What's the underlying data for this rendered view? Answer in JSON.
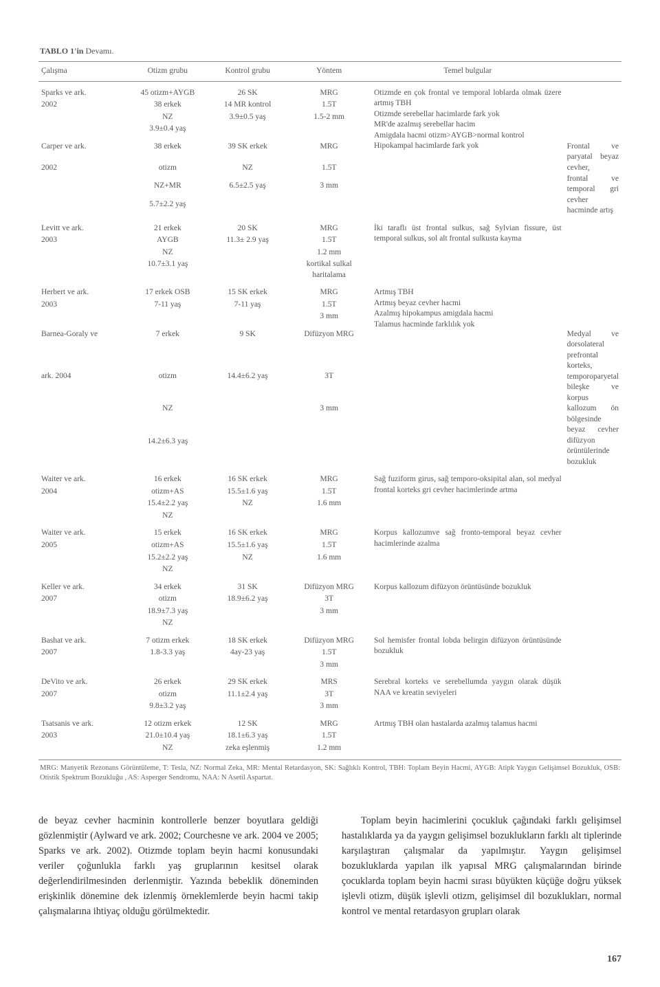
{
  "table": {
    "caption_bold": "TABLO 1'in",
    "caption_rest": " Devamı.",
    "headers": [
      "Çalışma",
      "Otizm grubu",
      "Kontrol grubu",
      "Yöntem",
      "Temel bulgular"
    ],
    "rows": [
      {
        "study": [
          "Sparks ve ark.",
          "2002"
        ],
        "autism": [
          "45 otizm+AYGB",
          "38 erkek",
          "NZ",
          "3.9±0.4 yaş"
        ],
        "control": [
          "26 SK",
          "14 MR kontrol",
          "3.9±0.5 yaş"
        ],
        "method": [
          "MRG",
          "1.5T",
          "1.5-2 mm"
        ],
        "finding": "Otizmde en çok frontal ve temporal loblarda olmak üzere artmış TBH\nOtizmde serebellar hacimlarde fark yok\nMR'de azalmış serebellar hacim\nAmigdala hacmi otizm>AYGB>normal kontrol\nHipokampal hacimlarde fark yok"
      },
      {
        "study": [
          "Carper ve ark.",
          "2002"
        ],
        "autism": [
          "38 erkek",
          "otizm",
          "NZ+MR",
          "5.7±2.2 yaş"
        ],
        "control": [
          "39 SK erkek",
          "NZ",
          "6.5±2.5 yaş"
        ],
        "method": [
          "MRG",
          "1.5T",
          "3 mm"
        ],
        "finding": "Frontal ve paryatal beyaz cevher,\nfrontal ve temporal gri cevher hacminde artış"
      },
      {
        "study": [
          "Levitt ve ark.",
          "2003"
        ],
        "autism": [
          "21 erkek",
          "AYGB",
          "NZ",
          "10.7±3.1 yaş"
        ],
        "control": [
          "20 SK",
          "11.3± 2.9 yaş"
        ],
        "method": [
          "MRG",
          "1.5T",
          "1.2 mm",
          "kortikal sulkal haritalama"
        ],
        "finding": "İki taraflı üst frontal sulkus, sağ Sylvian fissure, üst temporal sulkus, sol alt frontal sulkusta kayma"
      },
      {
        "study": [
          "Herbert ve ark.",
          "2003"
        ],
        "autism": [
          "17 erkek OSB",
          "7-11 yaş"
        ],
        "control": [
          "15 SK erkek",
          "7-11 yaş"
        ],
        "method": [
          "MRG",
          "1.5T",
          "3 mm"
        ],
        "finding": "Artmış TBH\nArtmış beyaz cevher hacmi\nAzalmış hipokampus amigdala hacmi\nTalamus hacminde farklılık yok"
      },
      {
        "study": [
          "Barnea-Goraly ve",
          "ark. 2004"
        ],
        "autism": [
          "7 erkek",
          "otizm",
          "NZ",
          "14.2±6.3 yaş"
        ],
        "control": [
          "9 SK",
          "14.4±6.2 yaş"
        ],
        "method": [
          "Difüzyon MRG",
          "3T",
          "3 mm"
        ],
        "finding": "Medyal ve dorsolateral prefrontal korteks, temporoparyetal bileşke ve korpus kallozum ön bölgesinde beyaz cevher difüzyon örüntülerinde bozukluk"
      },
      {
        "study": [
          "Waiter ve ark.",
          "2004"
        ],
        "autism": [
          "16 erkek",
          "otizm+AS",
          "15.4±2.2 yaş",
          "NZ"
        ],
        "control": [
          "16 SK erkek",
          "15.5±1.6 yaş",
          "NZ"
        ],
        "method": [
          "MRG",
          "1.5T",
          "1.6 mm"
        ],
        "finding": "Sağ fuziform girus, sağ temporo-oksipital alan, sol medyal frontal korteks gri cevher hacimlerinde artma"
      },
      {
        "study": [
          "Waiter ve ark.",
          "2005"
        ],
        "autism": [
          "15 erkek",
          "otizm+AS",
          "15.2±2.2 yaş",
          "NZ"
        ],
        "control": [
          "16 SK erkek",
          "15.5±1.6 yaş",
          "NZ"
        ],
        "method": [
          "MRG",
          "1.5T",
          "1.6 mm"
        ],
        "finding": "Korpus kallozumve sağ fronto-temporal beyaz cevher hacimlerinde azalma"
      },
      {
        "study": [
          "Keller ve ark.",
          "2007"
        ],
        "autism": [
          "34 erkek",
          "otizm",
          "18.9±7.3 yaş",
          "NZ"
        ],
        "control": [
          "31 SK",
          "18.9±6.2 yaş"
        ],
        "method": [
          "Difüzyon MRG",
          "3T",
          "3 mm"
        ],
        "finding": "Korpus kallozum difüzyon örüntüsünde bozukluk"
      },
      {
        "study": [
          "Bashat ve ark.",
          "2007"
        ],
        "autism": [
          "7 otizm erkek",
          "1.8-3.3 yaş"
        ],
        "control": [
          "18 SK erkek",
          "4ay-23 yaş"
        ],
        "method": [
          "Difüzyon MRG",
          "1.5T",
          "3 mm"
        ],
        "finding": "Sol hemisfer frontal lobda belirgin difüzyon örüntüsünde bozukluk"
      },
      {
        "study": [
          "DeVito ve ark.",
          "2007"
        ],
        "autism": [
          "26 erkek",
          "otizm",
          "9.8±3.2 yaş"
        ],
        "control": [
          "29 SK erkek",
          "11.1±2.4 yaş"
        ],
        "method": [
          "MRS",
          "3T",
          "3 mm"
        ],
        "finding": "Serebral korteks ve serebellumda yaygın olarak düşük NAA ve kreatin seviyeleri"
      },
      {
        "study": [
          "Tsatsanis ve ark.",
          "2003"
        ],
        "autism": [
          "12 otizm erkek",
          "21.0±10.4 yaş",
          "NZ"
        ],
        "control": [
          "12 SK",
          "18.1±6.3 yaş",
          "zeka eşlenmiş"
        ],
        "method": [
          "MRG",
          "1.5T",
          "1.2 mm"
        ],
        "finding": "Artmış TBH olan hastalarda azalmış talamus hacmi"
      }
    ],
    "footnote": "MRG: Manyetik Rezonans Görüntüleme, T: Tesla, NZ: Normal Zeka, MR: Mental Retardasyon, SK: Sağlıklı Kontrol, TBH: Toplam Beyin Hacmi, AYGB: Atipk Yaygın Gelişimsel Bozukluk, OSB: Otistik Spektrum Bozukluğu , AS: Asperger Sendromu, NAA: N Asetil Aspartat."
  },
  "body": {
    "col1": "de beyaz cevher hacminin kontrollerle benzer boyutlara geldiği gözlenmiştir (Aylward ve ark. 2002; Courchesne ve ark. 2004 ve 2005; Sparks ve ark. 2002). Otizmde toplam beyin hacmi konusundaki veriler çoğunlukla farklı yaş gruplarının kesitsel olarak değerlendirilmesinden derlenmiştir. Yazında bebeklik döneminden erişkinlik dönemine dek izlenmiş örneklemlerde beyin hacmi takip çalışmalarına ihtiyaç olduğu görülmektedir.",
    "col2": "Toplam beyin hacimlerini çocukluk çağındaki farklı gelişimsel hastalıklarda ya da yaygın gelişimsel bozuklukların farklı alt tiplerinde karşılaştıran çalışmalar da yapılmıştır. Yaygın gelişimsel bozukluklarda yapılan ilk yapısal MRG çalışmalarından birinde çocuklarda toplam beyin hacmi sırası büyükten küçüğe doğru yüksek işlevli otizm, düşük işlevli otizm, gelişimsel dil bozuklukları, normal kontrol ve mental retardasyon grupları olarak"
  },
  "page_number": "167"
}
